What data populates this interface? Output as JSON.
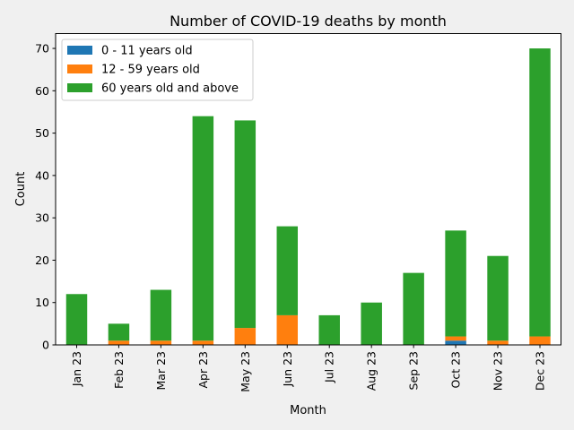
{
  "chart_data": {
    "type": "bar",
    "stacked": true,
    "title": "Number of COVID-19 deaths by month",
    "xlabel": "Month",
    "ylabel": "Count",
    "ylim": [
      0,
      73.5
    ],
    "yticks": [
      0,
      10,
      20,
      30,
      40,
      50,
      60,
      70
    ],
    "grid": false,
    "legend_position": "top-left",
    "categories": [
      "Jan 23",
      "Feb 23",
      "Mar 23",
      "Apr 23",
      "May 23",
      "Jun 23",
      "Jul 23",
      "Aug 23",
      "Sep 23",
      "Oct 23",
      "Nov 23",
      "Dec 23"
    ],
    "series": [
      {
        "name": "0 - 11 years old",
        "color": "#1f77b4",
        "values": [
          0,
          0,
          0,
          0,
          0,
          0,
          0,
          0,
          0,
          1,
          0,
          0
        ]
      },
      {
        "name": "12 - 59 years old",
        "color": "#ff7f0e",
        "values": [
          0,
          1,
          1,
          1,
          4,
          7,
          0,
          0,
          0,
          1,
          1,
          2
        ]
      },
      {
        "name": "60 years old and above",
        "color": "#2ca02c",
        "values": [
          12,
          4,
          12,
          53,
          49,
          21,
          7,
          10,
          17,
          25,
          20,
          68
        ]
      }
    ]
  }
}
